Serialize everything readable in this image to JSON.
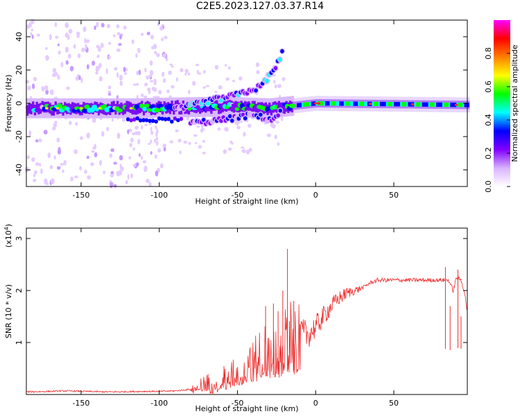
{
  "title": "C2E5.2023.127.03.37.R14",
  "chart_data": [
    {
      "type": "heatmap",
      "xlabel": "Height of straight line (km)",
      "ylabel": "Frequency (Hz)",
      "xlim": [
        -185,
        97
      ],
      "ylim": [
        -50,
        50
      ],
      "xticks": [
        -150,
        -100,
        -50,
        0,
        50
      ],
      "yticks": [
        -40,
        -20,
        0,
        20,
        40
      ],
      "grid": false,
      "colorbar": {
        "label": "Normalized spectral amplitude",
        "range": [
          0,
          1
        ],
        "ticks": [
          "0.0",
          "0.2",
          "0.4",
          "0.6",
          "0.8"
        ],
        "colors": [
          "#ffffff",
          "#d9b3ff",
          "#8000ff",
          "#0000ff",
          "#00ffff",
          "#00ff00",
          "#ffff00",
          "#ff8000",
          "#ff0000",
          "#ff00ff"
        ]
      },
      "features": [
        {
          "desc": "main frequency line",
          "x": [
            -185,
            -120,
            -60,
            -30,
            -20,
            0,
            97
          ],
          "y": [
            -3,
            -3,
            -2,
            -3,
            -2,
            0,
            -1
          ],
          "amplitude": 0.5
        },
        {
          "desc": "rising branch",
          "x": [
            -90,
            -70,
            -50,
            -35,
            -25,
            -20
          ],
          "y": [
            -4,
            1,
            5,
            10,
            22,
            35
          ],
          "amplitude": 0.4
        },
        {
          "desc": "descending branch",
          "x": [
            -80,
            -60,
            -40,
            -28,
            -22
          ],
          "y": [
            -12,
            -10,
            -7,
            -10,
            -5
          ],
          "amplitude": 0.3
        }
      ]
    },
    {
      "type": "line",
      "xlabel": "Height of straight line (km)",
      "ylabel": "SNR (10 * v/v)",
      "yscale_label": "(x10",
      "yscale_exp": "4",
      "yscale_close": ")",
      "xlim": [
        -185,
        97
      ],
      "ylim": [
        0,
        3.2
      ],
      "xticks": [
        -150,
        -100,
        -50,
        0,
        50
      ],
      "yticks": [
        1,
        2,
        3
      ],
      "color": "#ee2a2a",
      "series": [
        {
          "x": [
            -185,
            -170,
            -160,
            -150,
            -130,
            -110,
            -100,
            -90,
            -80,
            -75,
            -70,
            -65,
            -60,
            -55,
            -50,
            -45,
            -40,
            -35,
            -30,
            -25,
            -20,
            -18,
            -15,
            -10,
            -5,
            0,
            5,
            10,
            15,
            20,
            25,
            30,
            35,
            40,
            50,
            60,
            70,
            80,
            85,
            88,
            90,
            93,
            95,
            97
          ],
          "y": [
            0.05,
            0.06,
            0.07,
            0.06,
            0.05,
            0.06,
            0.06,
            0.07,
            0.1,
            0.15,
            0.2,
            0.25,
            0.3,
            0.35,
            0.45,
            0.55,
            0.7,
            0.85,
            0.9,
            0.95,
            1.0,
            1.1,
            1.15,
            1.2,
            1.15,
            1.3,
            1.5,
            1.7,
            1.85,
            1.95,
            2.0,
            2.05,
            2.15,
            2.2,
            2.2,
            2.2,
            2.2,
            2.2,
            2.2,
            2.0,
            2.25,
            2.2,
            2.0,
            1.6
          ]
        }
      ],
      "peaks": {
        "x": [
          -32,
          -27,
          -24,
          -21,
          -18,
          -14,
          -10,
          83,
          86,
          91,
          93
        ],
        "y": [
          1.7,
          1.75,
          1.6,
          2.0,
          2.8,
          1.8,
          1.35,
          2.45,
          1.7,
          2.4,
          1.5
        ]
      }
    }
  ]
}
